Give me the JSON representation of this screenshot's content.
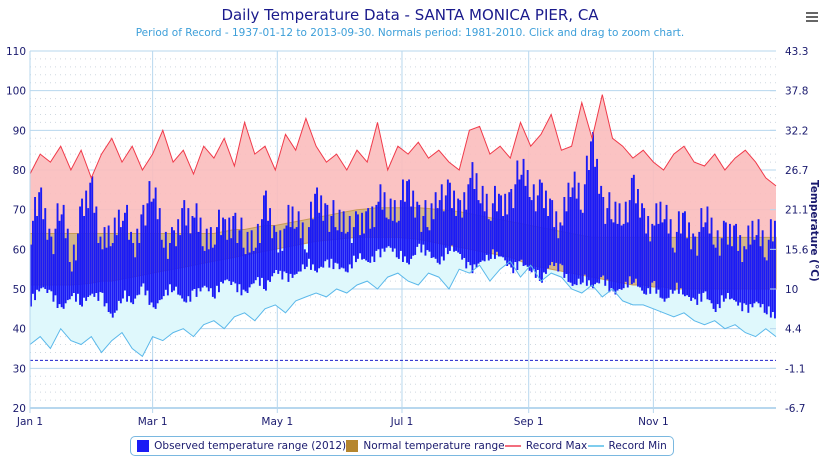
{
  "header": {
    "menu_icon": "hamburger-menu-icon"
  },
  "chart_data": {
    "type": "area",
    "title": "Daily Temperature Data - SANTA MONICA PIER, CA",
    "subtitle": "Period of Record - 1937-01-12 to 2013-09-30. Normals period: 1981-2010. Click and drag to zoom chart.",
    "xlabel": "",
    "ylabel_left": "",
    "ylabel_right": "Temperature (°C)",
    "ylim": [
      20,
      110
    ],
    "y_ticks_left": [
      "20",
      "30",
      "40",
      "50",
      "60",
      "70",
      "80",
      "90",
      "100",
      "110"
    ],
    "y_ticks_right": [
      "-6.7",
      "-1.1",
      "4.4",
      "10",
      "15.6",
      "21.1",
      "26.7",
      "32.2",
      "37.8",
      "43.3"
    ],
    "x_ticks": [
      {
        "label": "Jan 1",
        "day": 0
      },
      {
        "label": "Mar 1",
        "day": 60
      },
      {
        "label": "May 1",
        "day": 121
      },
      {
        "label": "Jul 1",
        "day": 182
      },
      {
        "label": "Sep 1",
        "day": 244
      },
      {
        "label": "Nov 1",
        "day": 305
      }
    ],
    "x_range_days": [
      0,
      365
    ],
    "freezing_line": 32,
    "grid": true,
    "legend_position": "bottom",
    "legend": [
      {
        "label": "Observed temperature range (2012)",
        "color": "#1b1bf5",
        "kind": "box"
      },
      {
        "label": "Normal temperature range",
        "color": "#b5862e",
        "kind": "box"
      },
      {
        "label": "Record Max",
        "color": "#f26d7d",
        "kind": "line"
      },
      {
        "label": "Record Min",
        "color": "#7fcdee",
        "kind": "line"
      }
    ],
    "colors": {
      "record_max_line": "#f03a4a",
      "record_max_fill": "#fbbcbc",
      "record_min_line": "#5ab8ea",
      "record_min_fill": "#dff8fc",
      "normal_fill": "#d4b589",
      "normal_edge": "#c99a55",
      "observed": "#1b1bf5",
      "freezing": "#2222cc",
      "grid": "#b7d7ee"
    },
    "sample_step_days": 5,
    "series": [
      {
        "name": "Record Max",
        "values": [
          79,
          84,
          82,
          86,
          80,
          85,
          78,
          84,
          88,
          82,
          86,
          80,
          84,
          90,
          82,
          85,
          79,
          86,
          83,
          88,
          81,
          92,
          84,
          86,
          80,
          89,
          85,
          93,
          86,
          82,
          84,
          80,
          85,
          82,
          92,
          80,
          86,
          84,
          87,
          83,
          85,
          82,
          80,
          90,
          91,
          84,
          86,
          83,
          92,
          86,
          89,
          94,
          85,
          86,
          97,
          88,
          99,
          88,
          86,
          83,
          85,
          82,
          80,
          84,
          86,
          82,
          81,
          84,
          80,
          83,
          85,
          82,
          78,
          76
        ]
      },
      {
        "name": "Record Min",
        "values": [
          36,
          38,
          35,
          40,
          37,
          36,
          38,
          34,
          37,
          39,
          35,
          33,
          38,
          37,
          39,
          40,
          38,
          41,
          42,
          40,
          43,
          44,
          42,
          45,
          46,
          44,
          47,
          48,
          49,
          48,
          50,
          49,
          51,
          52,
          50,
          53,
          54,
          52,
          51,
          54,
          53,
          50,
          55,
          54,
          56,
          52,
          55,
          57,
          53,
          56,
          52,
          54,
          53,
          50,
          49,
          51,
          48,
          50,
          47,
          46,
          46,
          45,
          44,
          43,
          44,
          42,
          41,
          42,
          40,
          41,
          39,
          38,
          40,
          38
        ]
      },
      {
        "name": "Normal High",
        "values": [
          64,
          64,
          64,
          64,
          64,
          64,
          64,
          64,
          64,
          64,
          64,
          64,
          64,
          64,
          64,
          64,
          64,
          64,
          64,
          64.5,
          65,
          65,
          65.5,
          66,
          66,
          66.5,
          67,
          67.5,
          68,
          68.5,
          69,
          69.5,
          70,
          70.2,
          70.5,
          70.5,
          70.5,
          70.5,
          70.5,
          70.3,
          70,
          69.8,
          69.5,
          69,
          68.5,
          68,
          67.5,
          67,
          66.5,
          66,
          65.5,
          65,
          64.5,
          64,
          63.5,
          63,
          63,
          63,
          63,
          63,
          63,
          63,
          63,
          63,
          63,
          63,
          63,
          63,
          63,
          63,
          63,
          63,
          63,
          63
        ]
      },
      {
        "name": "Normal Low",
        "values": [
          51,
          51,
          51,
          51,
          51,
          51.2,
          51.5,
          52,
          52,
          52.5,
          53,
          53.5,
          54,
          54.5,
          55,
          55.5,
          56,
          56.5,
          57,
          57.5,
          58,
          58.5,
          59,
          59.5,
          60,
          60.5,
          61,
          61.5,
          62,
          62.3,
          62.5,
          62.8,
          63,
          63,
          63,
          63,
          63,
          62.8,
          62.5,
          62,
          61.5,
          61,
          60.5,
          60,
          59.5,
          59,
          58.5,
          58,
          57,
          56,
          55.5,
          55,
          54.5,
          54,
          53.5,
          53,
          52.5,
          52,
          51.5,
          51,
          51,
          50.5,
          50.5,
          50,
          50,
          50,
          50,
          50,
          50,
          50,
          50,
          50,
          50,
          50
        ]
      },
      {
        "name": "Observed High (2012)",
        "values": [
          66,
          72,
          62,
          70,
          58,
          68,
          76,
          60,
          64,
          72,
          58,
          70,
          74,
          64,
          60,
          70,
          68,
          62,
          66,
          64,
          68,
          60,
          64,
          70,
          62,
          66,
          68,
          64,
          72,
          70,
          66,
          68,
          64,
          68,
          72,
          70,
          72,
          74,
          70,
          66,
          76,
          72,
          70,
          78,
          74,
          72,
          70,
          74,
          80,
          76,
          72,
          70,
          66,
          78,
          74,
          86,
          72,
          68,
          70,
          74,
          68,
          66,
          70,
          64,
          66,
          62,
          68,
          64,
          62,
          64,
          60,
          66,
          62,
          64
        ]
      },
      {
        "name": "Observed Low (2012)",
        "values": [
          48,
          52,
          50,
          46,
          50,
          48,
          50,
          49,
          44,
          50,
          48,
          52,
          46,
          50,
          52,
          48,
          50,
          52,
          50,
          54,
          52,
          50,
          54,
          52,
          56,
          54,
          55,
          58,
          56,
          58,
          57,
          56,
          60,
          58,
          60,
          62,
          60,
          58,
          62,
          60,
          58,
          62,
          60,
          56,
          58,
          60,
          60,
          56,
          58,
          56,
          54,
          58,
          56,
          52,
          54,
          52,
          54,
          50,
          52,
          54,
          50,
          52,
          48,
          52,
          50,
          48,
          50,
          46,
          50,
          48,
          46,
          48,
          46,
          44
        ]
      }
    ]
  }
}
